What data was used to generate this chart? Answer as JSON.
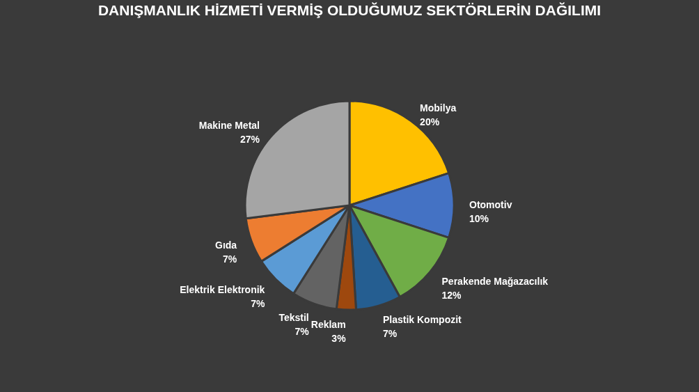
{
  "chart_data": {
    "type": "pie",
    "title": "DANIŞMANLIK HİZMETİ VERMİŞ OLDUĞUMUZ SEKTÖRLERİN DAĞILIMI",
    "categories": [
      "Mobilya",
      "Otomotiv",
      "Perakende Mağazacılık",
      "Plastik Kompozit",
      "Reklam",
      "Tekstil",
      "Elektrik Elektronik",
      "Gıda",
      "Makine Metal"
    ],
    "values": [
      20,
      10,
      12,
      7,
      3,
      7,
      7,
      7,
      27
    ],
    "value_labels": [
      "20%",
      "10%",
      "12%",
      "7%",
      "3%",
      "7%",
      "7%",
      "7%",
      "27%"
    ],
    "colors": [
      "#ffc000",
      "#4472c4",
      "#70ad47",
      "#255e91",
      "#9e480e",
      "#636363",
      "#5b9bd5",
      "#ed7d31",
      "#a5a5a5"
    ],
    "legend": false
  }
}
